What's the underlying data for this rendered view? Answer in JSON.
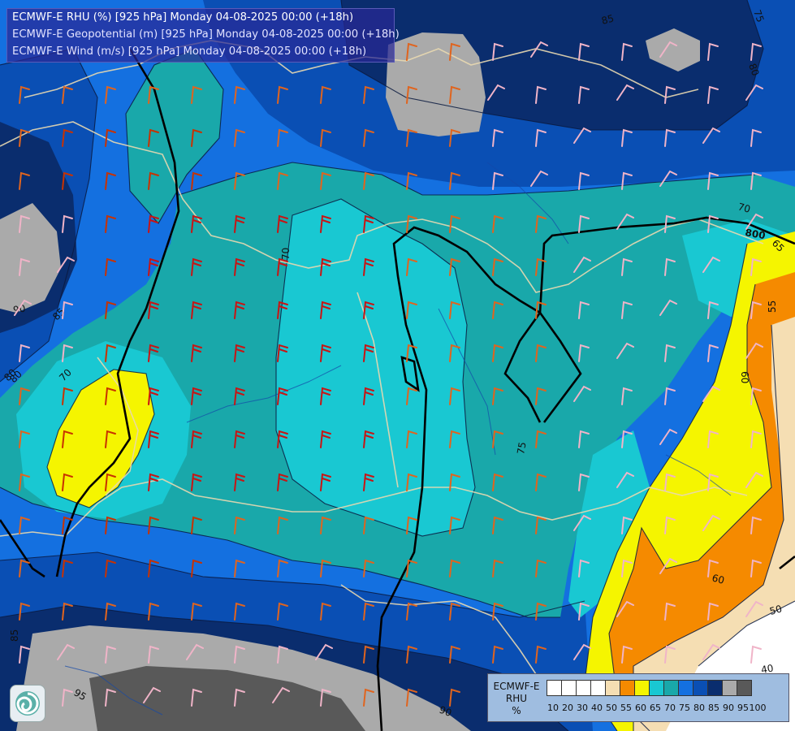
{
  "title": {
    "line1": "ECMWF-E RHU (%) [925 hPa] Monday 04-08-2025 00:00 (+18h)",
    "line2": "ECMWF-E Geopotential (m) [925 hPa] Monday 04-08-2025 00:00 (+18h)",
    "line3": "ECMWF-E Wind (m/s) [925 hPa] Monday 04-08-2025 00:00 (+18h)"
  },
  "legend": {
    "model": "ECMWF-E",
    "variable": "RHU",
    "unit": "%",
    "ticks": [
      "10",
      "20",
      "30",
      "40",
      "50",
      "55",
      "60",
      "65",
      "70",
      "75",
      "80",
      "85",
      "90",
      "95",
      "100"
    ],
    "colors": [
      "#ffffff",
      "#ffffff",
      "#ffffff",
      "#ffffff",
      "#f5deb3",
      "#f58a00",
      "#f5f500",
      "#19c8d2",
      "#19a8aa",
      "#1470e0",
      "#0a4fb4",
      "#0a2d6e",
      "#aaaaaa",
      "#595959"
    ]
  },
  "contour_labels": [
    "75",
    "85",
    "80",
    "70",
    "800",
    "65",
    "55",
    "70",
    "60",
    "80",
    "90",
    "85",
    "70",
    "80",
    "75",
    "60",
    "50",
    "40",
    "85",
    "95",
    "90"
  ],
  "rh_colors": {
    "lt50": "#ffffff",
    "50_55": "#f5deb3",
    "55_60": "#f58a00",
    "60_65": "#f5f500",
    "65_70": "#19c8d2",
    "70_75": "#19a8aa",
    "75_80": "#1470e0",
    "80_85": "#0a4fb4",
    "85_90": "#0a2d6e",
    "90_95": "#aaaaaa",
    "95_100": "#595959"
  }
}
